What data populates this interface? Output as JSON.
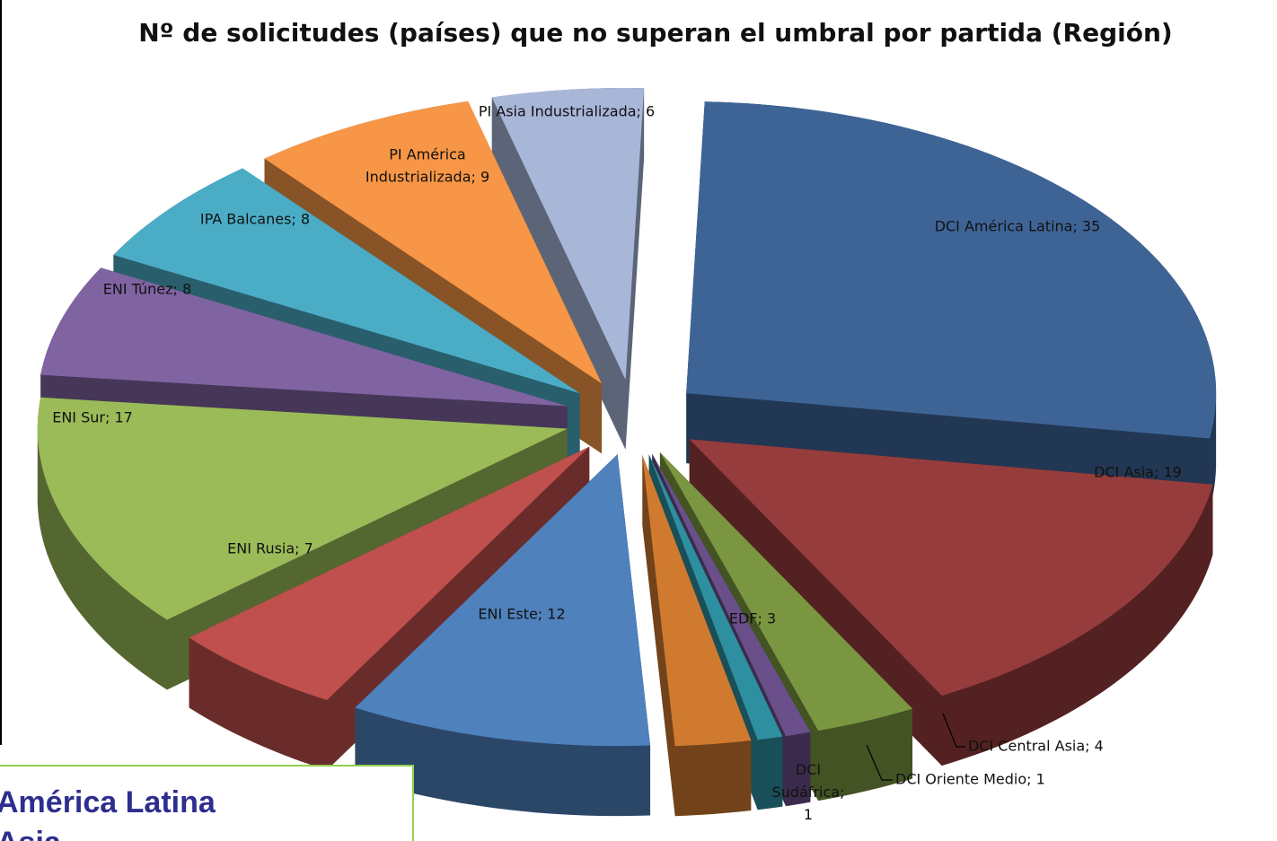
{
  "chart_data": {
    "type": "pie3d",
    "title": "Nº de solicitudes (países) que no superan el umbral por partida (Región)",
    "values": [
      35,
      19,
      4,
      1,
      1,
      3,
      12,
      7,
      17,
      8,
      8,
      9,
      6
    ],
    "value_labels": [
      "DCI América Latina; 35",
      "DCI Asia; 19",
      "DCI Central Asia; 4",
      "DCI Oriente Medio; 1",
      "DCI\nSudáfrica;\n1",
      "EDF; 3",
      "ENI Este; 12",
      "ENI Rusia; 7",
      "ENI Sur; 17",
      "ENI Túnez; 8",
      "IPA Balcanes; 8",
      "PI América\nIndustrializada; 9",
      "PI Asia Industrializada; 6"
    ],
    "colors": [
      "#3e6496",
      "#963c3c",
      "#7a9640",
      "#6a4f8a",
      "#2e8fa0",
      "#d07a30",
      "#4f81bd",
      "#c0504d",
      "#9bbb59",
      "#8064a2",
      "#4bacc6",
      "#f79646",
      "#a8b7d8"
    ]
  },
  "caption_box": {
    "lines": [
      "América Latina",
      "Asia"
    ]
  }
}
